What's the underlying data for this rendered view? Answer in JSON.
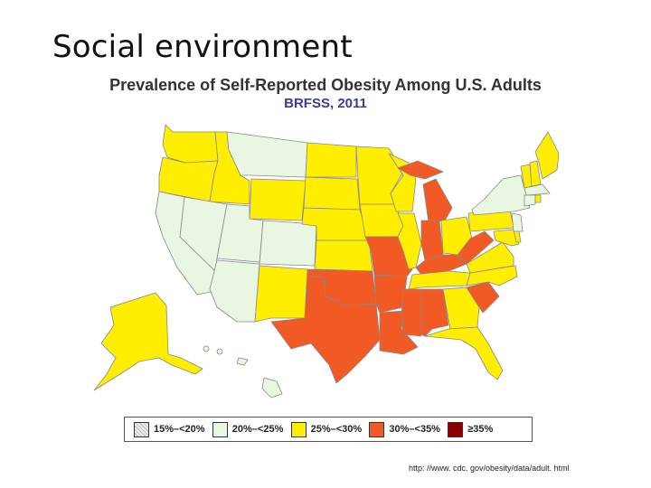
{
  "slide_title": "Social environment",
  "map_title": "Prevalence of Self-Reported Obesity Among U.S. Adults",
  "map_subtitle": "BRFSS, 2011",
  "legend": [
    {
      "label": "15%–<20%",
      "color": "#dedede"
    },
    {
      "label": "20%–<25%",
      "color": "#e9f7e2"
    },
    {
      "label": "25%–<30%",
      "color": "#ffee00"
    },
    {
      "label": "30%–<35%",
      "color": "#f15a24"
    },
    {
      "label": "≥35%",
      "color": "#8b0000"
    }
  ],
  "source_url": "http: //www. cdc. gov/obesity/data/adult. html"
}
